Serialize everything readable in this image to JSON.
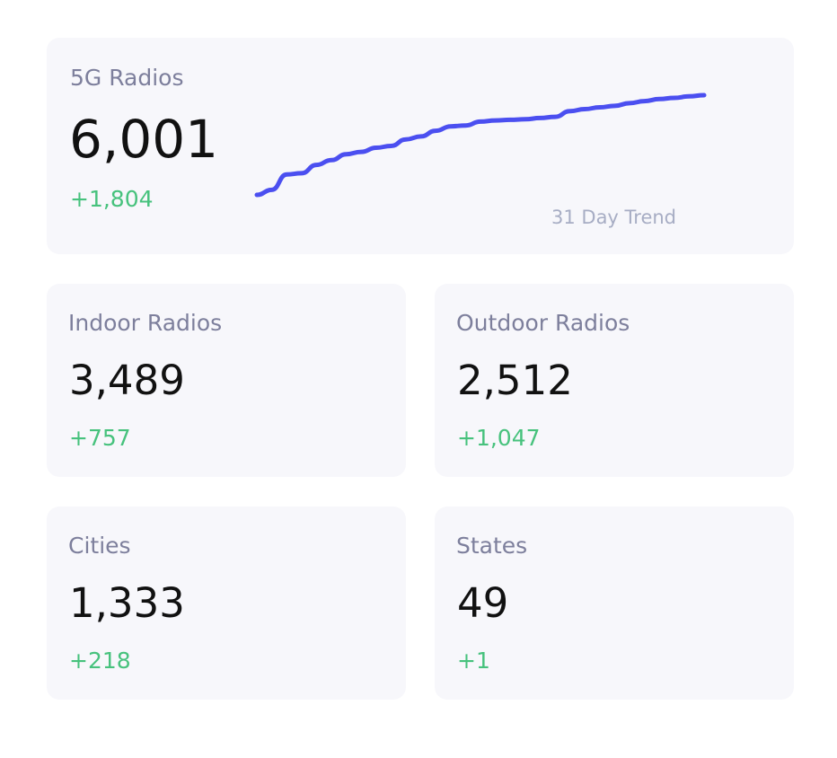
{
  "main": {
    "label": "5G Radios",
    "value": "6,001",
    "delta": "+1,804",
    "trend_caption": "31 Day Trend",
    "trend_color": "#4b4ff0",
    "trend": [
      7,
      24,
      76,
      80,
      108,
      124,
      144,
      152,
      166,
      172,
      194,
      204,
      223,
      238,
      241,
      254,
      258,
      260,
      262,
      266,
      270,
      289,
      296,
      302,
      307,
      316,
      323,
      330,
      334,
      339,
      343
    ]
  },
  "cards": [
    {
      "label": "Indoor Radios",
      "value": "3,489",
      "delta": "+757"
    },
    {
      "label": "Outdoor Radios",
      "value": "2,512",
      "delta": "+1,047"
    },
    {
      "label": "Cities",
      "value": "1,333",
      "delta": "+218"
    },
    {
      "label": "States",
      "value": "49",
      "delta": "+1"
    }
  ],
  "colors": {
    "card_background": "#f7f7fb",
    "label": "#7d7f9c",
    "value": "#111111",
    "delta_positive": "#47c27d",
    "caption": "#a7adc4"
  }
}
